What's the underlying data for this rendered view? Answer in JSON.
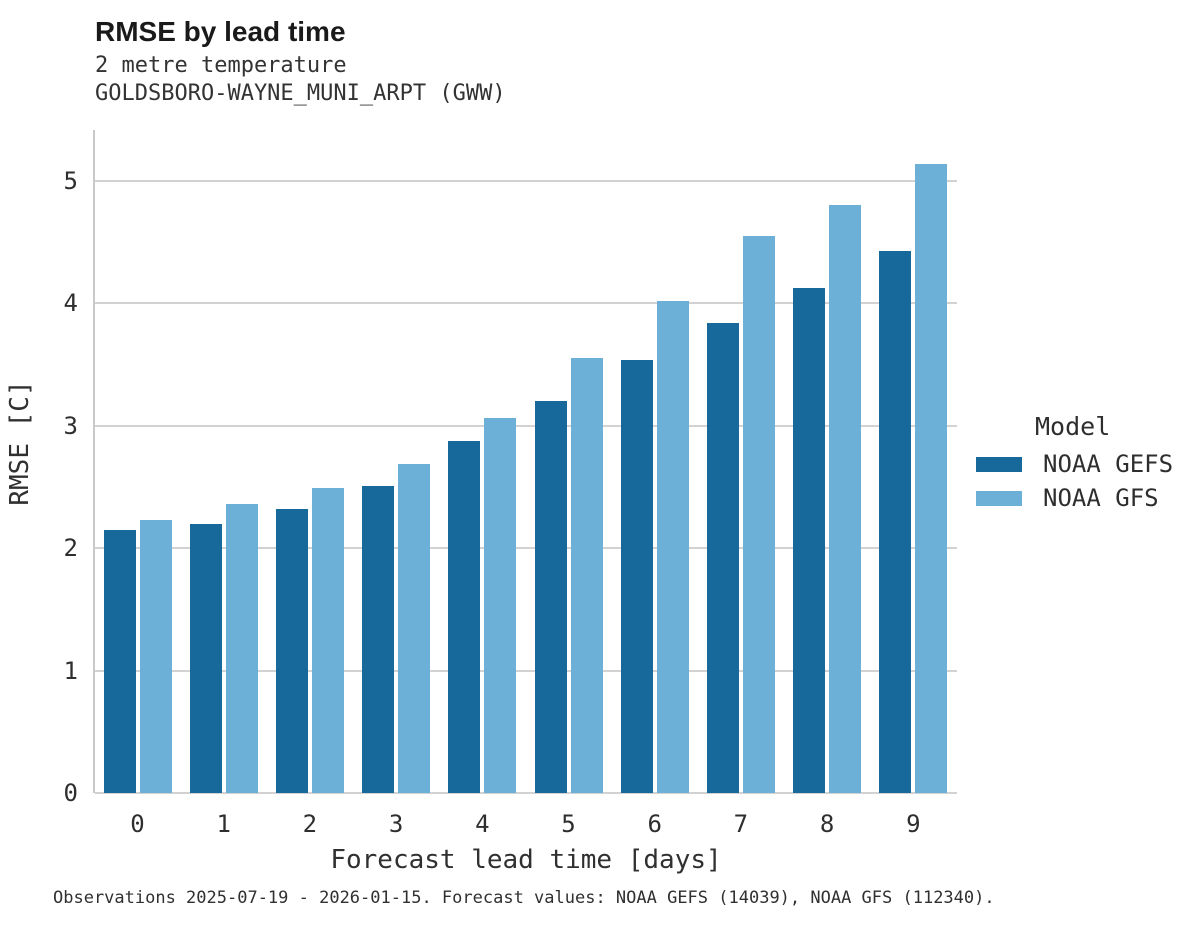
{
  "header": {
    "title": "RMSE by lead time",
    "subtitle_line1": "2 metre temperature",
    "subtitle_line2": "GOLDSBORO-WAYNE_MUNI_ARPT (GWW)"
  },
  "caption": "Observations 2025-07-19 - 2026-01-15. Forecast values: NOAA GEFS (14039), NOAA GFS (112340).",
  "legend": {
    "title": "Model"
  },
  "colors": {
    "gefs_bar": "#17699c",
    "gfs_bar": "#6cb0d8",
    "gridline": "#d2d2d2",
    "axis_line": "#c9c9c9"
  },
  "chart_data": {
    "type": "bar",
    "title": "RMSE by lead time",
    "subtitle": [
      "2 metre temperature",
      "GOLDSBORO-WAYNE_MUNI_ARPT (GWW)"
    ],
    "xlabel": "Forecast lead time [days]",
    "ylabel": "RMSE [C]",
    "categories": [
      "0",
      "1",
      "2",
      "3",
      "4",
      "5",
      "6",
      "7",
      "8",
      "9"
    ],
    "series": [
      {
        "name": "NOAA GEFS",
        "color": "#17699c",
        "values": [
          2.15,
          2.2,
          2.32,
          2.51,
          2.88,
          3.2,
          3.54,
          3.84,
          4.13,
          4.43
        ]
      },
      {
        "name": "NOAA GFS",
        "color": "#6cb0d8",
        "values": [
          2.23,
          2.36,
          2.49,
          2.69,
          3.06,
          3.55,
          4.02,
          4.55,
          4.8,
          5.14
        ]
      }
    ],
    "ylim": [
      0,
      5.4
    ],
    "yticks": [
      0,
      1,
      2,
      3,
      4,
      5
    ],
    "grid": true,
    "legend_title": "Model",
    "legend_position": "right",
    "caption": "Observations 2025-07-19 - 2026-01-15. Forecast values: NOAA GEFS (14039), NOAA GFS (112340)."
  }
}
